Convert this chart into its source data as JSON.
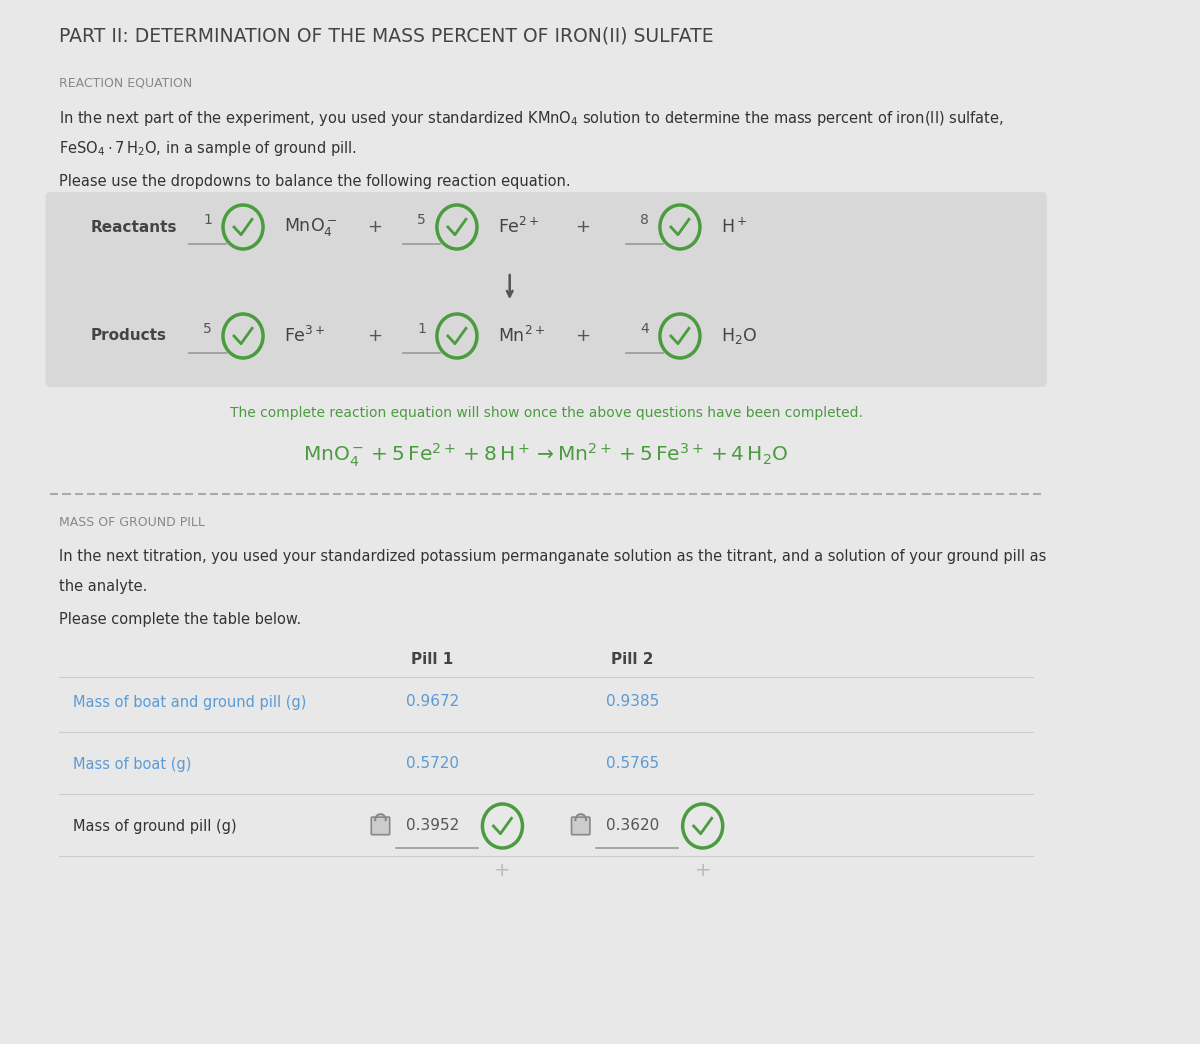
{
  "bg_color": "#e8e8e8",
  "title": "PART II: DETERMINATION OF THE MASS PERCENT OF IRON(II) SULFATE",
  "section1_header": "REACTION EQUATION",
  "section2_header": "MASS OF GROUND PILL",
  "green_color": "#4a9c3f",
  "blue_text": "#5b9bd5",
  "dark_text": "#333333",
  "gray_text": "#888888",
  "med_text": "#555555",
  "complete_eq_note": "The complete reaction equation will show once the above questions have been completed.",
  "table_rows": [
    {
      "label": "Mass of boat and ground pill (g)",
      "pill1": "0.9672",
      "pill2": "0.9385",
      "label_blue": true,
      "values_blue": true,
      "has_check": false
    },
    {
      "label": "Mass of boat (g)",
      "pill1": "0.5720",
      "pill2": "0.5765",
      "label_blue": true,
      "values_blue": true,
      "has_check": false
    },
    {
      "label": "Mass of ground pill (g)",
      "pill1": "0.3952",
      "pill2": "0.3620",
      "label_blue": false,
      "values_blue": false,
      "has_check": true
    }
  ]
}
